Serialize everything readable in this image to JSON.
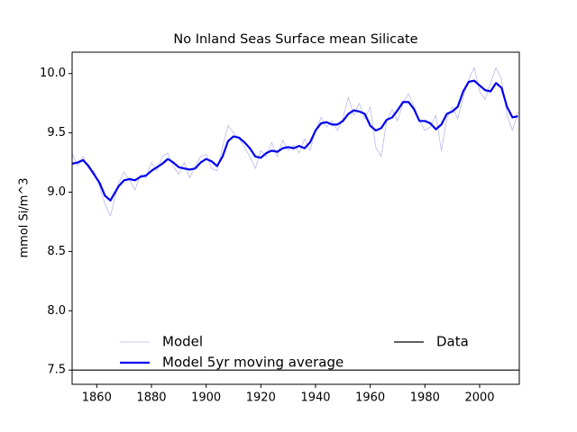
{
  "chart_data": {
    "type": "line",
    "title": "No Inland Seas Surface mean Silicate",
    "y_label": "mmol Si/m^3",
    "xlim": [
      1851,
      2014.5
    ],
    "ylim": [
      7.38,
      10.18
    ],
    "xticks": [
      1860,
      1880,
      1900,
      1920,
      1940,
      1960,
      1980,
      2000
    ],
    "yticks": [
      7.5,
      {
        "value": 8,
        "label": "8.0"
      },
      8.5,
      {
        "value": 9,
        "label": "9.0"
      },
      9.5,
      {
        "value": 10,
        "label": "10.0"
      }
    ],
    "grid": false,
    "series": [
      {
        "name": "Model",
        "color": "#b8b8f0",
        "width": 0.8,
        "x": [
          1851,
          1853,
          1855,
          1857,
          1859,
          1861,
          1863,
          1865,
          1868,
          1870,
          1872,
          1874,
          1876,
          1878,
          1880,
          1882,
          1884,
          1886,
          1888,
          1890,
          1892,
          1894,
          1896,
          1898,
          1900,
          1902,
          1904,
          1906,
          1908,
          1910,
          1912,
          1914,
          1916,
          1918,
          1920,
          1922,
          1924,
          1926,
          1928,
          1930,
          1932,
          1934,
          1936,
          1938,
          1940,
          1942,
          1944,
          1946,
          1948,
          1950,
          1952,
          1954,
          1956,
          1958,
          1960,
          1962,
          1964,
          1966,
          1968,
          1970,
          1972,
          1974,
          1976,
          1978,
          1980,
          1982,
          1984,
          1986,
          1988,
          1990,
          1992,
          1994,
          1996,
          1998,
          2000,
          2002,
          2004,
          2006,
          2008,
          2010,
          2012,
          2014
        ],
        "values": [
          9.33,
          9.22,
          9.3,
          9.2,
          9.18,
          9.05,
          8.9,
          8.8,
          9.08,
          9.17,
          9.1,
          9.02,
          9.15,
          9.12,
          9.25,
          9.18,
          9.3,
          9.33,
          9.22,
          9.15,
          9.25,
          9.12,
          9.22,
          9.3,
          9.32,
          9.2,
          9.18,
          9.38,
          9.56,
          9.5,
          9.45,
          9.38,
          9.3,
          9.2,
          9.35,
          9.3,
          9.42,
          9.3,
          9.44,
          9.35,
          9.4,
          9.33,
          9.45,
          9.35,
          9.52,
          9.63,
          9.55,
          9.6,
          9.52,
          9.62,
          9.8,
          9.65,
          9.75,
          9.62,
          9.72,
          9.38,
          9.3,
          9.6,
          9.7,
          9.6,
          9.75,
          9.83,
          9.72,
          9.6,
          9.52,
          9.55,
          9.65,
          9.35,
          9.62,
          9.72,
          9.62,
          9.8,
          9.95,
          10.05,
          9.85,
          9.78,
          9.92,
          10.05,
          9.95,
          9.65,
          9.52,
          9.68
        ]
      },
      {
        "name": "Model 5yr moving average",
        "color": "#0000ee",
        "width": 2.2,
        "x": [
          1851,
          1853,
          1855,
          1857,
          1859,
          1861,
          1863,
          1865,
          1868,
          1870,
          1872,
          1874,
          1876,
          1878,
          1880,
          1882,
          1884,
          1886,
          1888,
          1890,
          1892,
          1894,
          1896,
          1898,
          1900,
          1902,
          1904,
          1906,
          1908,
          1910,
          1912,
          1914,
          1916,
          1918,
          1920,
          1922,
          1924,
          1926,
          1928,
          1930,
          1932,
          1934,
          1936,
          1938,
          1940,
          1942,
          1944,
          1946,
          1948,
          1950,
          1952,
          1954,
          1956,
          1958,
          1960,
          1962,
          1964,
          1966,
          1968,
          1970,
          1972,
          1974,
          1976,
          1978,
          1980,
          1982,
          1984,
          1986,
          1988,
          1990,
          1992,
          1994,
          1996,
          1998,
          2000,
          2002,
          2004,
          2006,
          2008,
          2010,
          2012,
          2014
        ],
        "values": [
          9.24,
          9.25,
          9.27,
          9.22,
          9.15,
          9.08,
          8.97,
          8.93,
          9.05,
          9.1,
          9.11,
          9.1,
          9.13,
          9.14,
          9.18,
          9.21,
          9.24,
          9.28,
          9.25,
          9.21,
          9.2,
          9.19,
          9.2,
          9.25,
          9.28,
          9.26,
          9.22,
          9.3,
          9.43,
          9.47,
          9.46,
          9.42,
          9.37,
          9.3,
          9.29,
          9.33,
          9.35,
          9.34,
          9.37,
          9.38,
          9.37,
          9.39,
          9.37,
          9.42,
          9.52,
          9.58,
          9.59,
          9.57,
          9.57,
          9.6,
          9.66,
          9.69,
          9.68,
          9.66,
          9.56,
          9.52,
          9.54,
          9.61,
          9.63,
          9.69,
          9.76,
          9.76,
          9.7,
          9.6,
          9.6,
          9.58,
          9.53,
          9.57,
          9.66,
          9.68,
          9.72,
          9.85,
          9.93,
          9.94,
          9.9,
          9.86,
          9.85,
          9.92,
          9.88,
          9.72,
          9.63,
          9.64
        ]
      },
      {
        "name": "Data",
        "color": "#000000",
        "width": 1.2,
        "x": [
          1851,
          2014.5
        ],
        "values": [
          7.5,
          7.5
        ]
      }
    ]
  }
}
